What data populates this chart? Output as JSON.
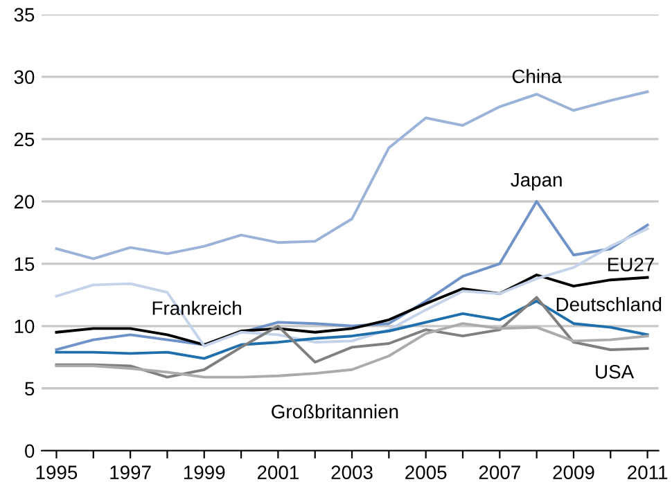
{
  "chart_data": {
    "type": "line",
    "x": [
      1995,
      1996,
      1997,
      1998,
      1999,
      2000,
      2001,
      2002,
      2003,
      2004,
      2005,
      2006,
      2007,
      2008,
      2009,
      2010,
      2011
    ],
    "series": [
      {
        "name": "China",
        "color": "#9bb3d9",
        "values": [
          16.2,
          15.4,
          16.3,
          15.8,
          16.4,
          17.3,
          16.7,
          16.8,
          18.6,
          24.3,
          26.7,
          26.1,
          27.6,
          28.6,
          27.3,
          28.1,
          28.8
        ]
      },
      {
        "name": "Japan",
        "color": "#6f93c8",
        "values": [
          8.1,
          8.9,
          9.3,
          8.9,
          8.5,
          9.5,
          10.3,
          10.2,
          10.0,
          10.2,
          12.0,
          14.0,
          15.0,
          20.0,
          15.7,
          16.2,
          18.1
        ]
      },
      {
        "name": "EU27",
        "color": "#000000",
        "values": [
          9.5,
          9.8,
          9.8,
          9.3,
          8.5,
          9.6,
          9.8,
          9.5,
          9.8,
          10.5,
          11.8,
          13.0,
          12.6,
          14.1,
          13.2,
          13.7,
          13.9
        ]
      },
      {
        "name": "Frankreich",
        "color": "#c5d3ea",
        "values": [
          12.4,
          13.3,
          13.4,
          12.7,
          8.4,
          9.5,
          9.3,
          8.7,
          8.8,
          9.7,
          11.3,
          12.8,
          12.6,
          13.8,
          14.7,
          16.4,
          17.8
        ]
      },
      {
        "name": "Deutschland",
        "color": "#1f6fad",
        "values": [
          7.9,
          7.9,
          7.8,
          7.9,
          7.4,
          8.5,
          8.7,
          9.0,
          9.2,
          9.6,
          10.3,
          11.0,
          10.5,
          12.0,
          10.2,
          9.9,
          9.3
        ]
      },
      {
        "name": "USA",
        "color": "#7f7f7f",
        "values": [
          6.9,
          6.9,
          6.8,
          5.9,
          6.5,
          8.3,
          10.0,
          7.1,
          8.3,
          8.6,
          9.7,
          9.2,
          9.7,
          12.3,
          8.7,
          8.1,
          8.2
        ]
      },
      {
        "name": "Großbritannien",
        "color": "#ababab",
        "values": [
          6.8,
          6.8,
          6.6,
          6.3,
          5.9,
          5.9,
          6.0,
          6.2,
          6.5,
          7.6,
          9.4,
          10.2,
          9.8,
          9.9,
          8.8,
          8.9,
          9.2
        ]
      }
    ],
    "xlim": [
      1994.6,
      2011.3
    ],
    "ylim": [
      0,
      35
    ],
    "xticks": [
      1995,
      {
        "value": 1996,
        "label": null
      },
      1997,
      {
        "value": 1998,
        "label": null
      },
      1999,
      {
        "value": 2000,
        "label": null
      },
      2001,
      {
        "value": 2002,
        "label": null
      },
      2003,
      {
        "value": 2004,
        "label": null
      },
      2005,
      {
        "value": 2006,
        "label": null
      },
      2007,
      {
        "value": 2008,
        "label": null
      },
      2009,
      {
        "value": 2010,
        "label": null
      },
      2011
    ],
    "yticks": [
      0,
      5,
      10,
      15,
      20,
      25,
      30,
      35
    ],
    "grid": "y",
    "legend": false,
    "marker": "none",
    "line_style": "solid"
  }
}
